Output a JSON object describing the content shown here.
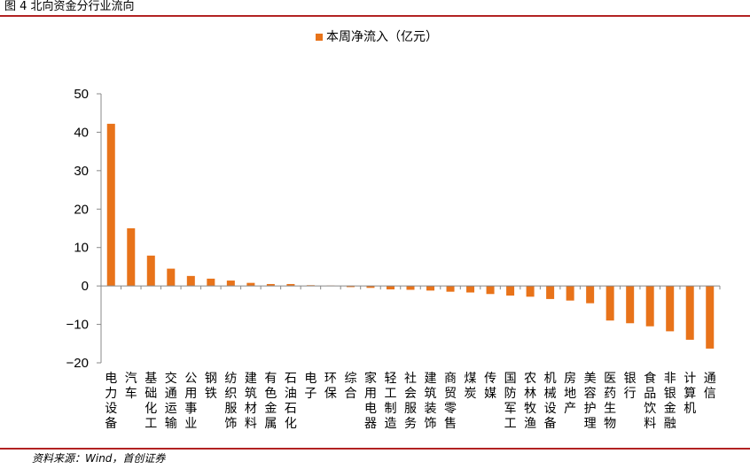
{
  "figure": {
    "title": "图 4 北向资金分行业流向",
    "source": "资料来源：Wind，首创证券"
  },
  "colors": {
    "bar": "#E8731A",
    "axis": "#888888",
    "rule": "#b22222"
  },
  "chart_data": {
    "type": "bar",
    "title": "",
    "xlabel": "",
    "ylabel": "",
    "ylim": [
      -20,
      50
    ],
    "yticks": [
      -20,
      -10,
      0,
      10,
      20,
      30,
      40,
      50
    ],
    "ytick_labels": [
      "−20",
      "−10",
      "0",
      "10",
      "20",
      "30",
      "40",
      "50"
    ],
    "grid": false,
    "legend": {
      "position": "top-center"
    },
    "categories": [
      "电力设备",
      "汽车",
      "基础化工",
      "交通运输",
      "公用事业",
      "钢铁",
      "纺织服饰",
      "建筑材料",
      "有色金属",
      "石油石化",
      "电子",
      "环保",
      "综合",
      "家用电器",
      "轻工制造",
      "社会服务",
      "建筑装饰",
      "商贸零售",
      "煤炭",
      "传媒",
      "国防军工",
      "农林牧渔",
      "机械设备",
      "房地产",
      "美容护理",
      "医药生物",
      "银行",
      "食品饮料",
      "非银金融",
      "计算机",
      "通信"
    ],
    "series": [
      {
        "name": "本周净流入（亿元）",
        "values": [
          42.2,
          15.0,
          7.9,
          4.5,
          2.6,
          1.9,
          1.4,
          0.8,
          0.5,
          0.5,
          0.2,
          0.1,
          -0.3,
          -0.5,
          -0.9,
          -1.0,
          -1.2,
          -1.5,
          -1.7,
          -2.1,
          -2.5,
          -2.8,
          -3.4,
          -3.8,
          -4.5,
          -9.0,
          -9.7,
          -10.5,
          -11.8,
          -14.0,
          -16.3
        ]
      }
    ]
  }
}
